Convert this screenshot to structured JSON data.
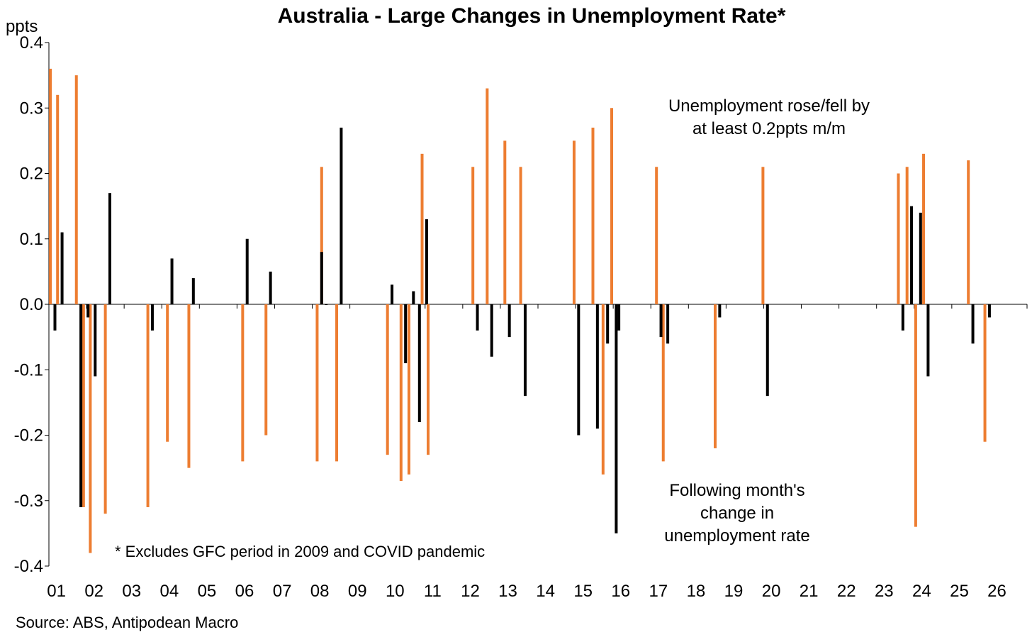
{
  "chart_data": {
    "type": "bar",
    "title": "Australia - Large Changes in Unemployment Rate*",
    "ylabel": "ppts",
    "ylim": [
      -0.4,
      0.4
    ],
    "yticks": [
      0.4,
      0.3,
      0.2,
      0.1,
      0.0,
      -0.1,
      -0.2,
      -0.3,
      -0.4
    ],
    "ytick_labels": [
      "0.4",
      "0.3",
      "0.2",
      "0.1",
      "0.0",
      "-0.1",
      "-0.2",
      "-0.3",
      "-0.4"
    ],
    "x_tick_labels": [
      "01",
      "02",
      "03",
      "04",
      "05",
      "06",
      "07",
      "08",
      "09",
      "10",
      "11",
      "12",
      "13",
      "14",
      "15",
      "16",
      "17",
      "18",
      "19",
      "20",
      "21",
      "22",
      "23",
      "24",
      "25",
      "26"
    ],
    "x_range": [
      2001.0,
      2027.0
    ],
    "series": [
      {
        "name": "Unemployment rose/fell by at least 0.2ppts m/m",
        "color": "#ED7D31",
        "points": [
          {
            "x": 2001.04,
            "y": 0.36
          },
          {
            "x": 2001.23,
            "y": 0.32
          },
          {
            "x": 2001.73,
            "y": 0.35
          },
          {
            "x": 2001.92,
            "y": -0.31
          },
          {
            "x": 2002.1,
            "y": -0.38
          },
          {
            "x": 2002.5,
            "y": -0.32
          },
          {
            "x": 2003.63,
            "y": -0.31
          },
          {
            "x": 2004.15,
            "y": -0.21
          },
          {
            "x": 2004.72,
            "y": -0.25
          },
          {
            "x": 2006.15,
            "y": -0.24
          },
          {
            "x": 2006.77,
            "y": -0.2
          },
          {
            "x": 2008.13,
            "y": -0.24
          },
          {
            "x": 2008.25,
            "y": 0.21
          },
          {
            "x": 2008.65,
            "y": -0.24
          },
          {
            "x": 2010.0,
            "y": -0.23
          },
          {
            "x": 2010.36,
            "y": -0.27
          },
          {
            "x": 2010.57,
            "y": -0.26
          },
          {
            "x": 2010.92,
            "y": 0.23
          },
          {
            "x": 2011.08,
            "y": -0.23
          },
          {
            "x": 2012.27,
            "y": 0.21
          },
          {
            "x": 2012.65,
            "y": 0.33
          },
          {
            "x": 2013.12,
            "y": 0.25
          },
          {
            "x": 2013.54,
            "y": 0.21
          },
          {
            "x": 2014.96,
            "y": 0.25
          },
          {
            "x": 2015.46,
            "y": 0.27
          },
          {
            "x": 2015.73,
            "y": -0.26
          },
          {
            "x": 2015.96,
            "y": 0.3
          },
          {
            "x": 2017.15,
            "y": 0.21
          },
          {
            "x": 2017.33,
            "y": -0.24
          },
          {
            "x": 2018.71,
            "y": -0.22
          },
          {
            "x": 2019.98,
            "y": 0.21
          },
          {
            "x": 2023.58,
            "y": 0.2
          },
          {
            "x": 2023.81,
            "y": 0.21
          },
          {
            "x": 2024.04,
            "y": -0.34
          },
          {
            "x": 2024.25,
            "y": 0.23
          },
          {
            "x": 2025.44,
            "y": 0.22
          },
          {
            "x": 2025.88,
            "y": -0.21
          }
        ]
      },
      {
        "name": "Following month's change in unemployment rate",
        "color": "#000000",
        "points": [
          {
            "x": 2001.16,
            "y": -0.04
          },
          {
            "x": 2001.35,
            "y": 0.11
          },
          {
            "x": 2001.85,
            "y": -0.31
          },
          {
            "x": 2002.04,
            "y": -0.02
          },
          {
            "x": 2002.23,
            "y": -0.11
          },
          {
            "x": 2002.62,
            "y": 0.17
          },
          {
            "x": 2003.75,
            "y": -0.04
          },
          {
            "x": 2004.27,
            "y": 0.07
          },
          {
            "x": 2004.84,
            "y": 0.04
          },
          {
            "x": 2006.27,
            "y": 0.1
          },
          {
            "x": 2006.89,
            "y": 0.05
          },
          {
            "x": 2008.25,
            "y": 0.08
          },
          {
            "x": 2008.37,
            "y": 0.0
          },
          {
            "x": 2008.77,
            "y": 0.27
          },
          {
            "x": 2010.12,
            "y": 0.03
          },
          {
            "x": 2010.48,
            "y": -0.09
          },
          {
            "x": 2010.69,
            "y": 0.02
          },
          {
            "x": 2010.85,
            "y": -0.18
          },
          {
            "x": 2011.04,
            "y": 0.13
          },
          {
            "x": 2012.39,
            "y": -0.04
          },
          {
            "x": 2012.77,
            "y": -0.08
          },
          {
            "x": 2013.24,
            "y": -0.05
          },
          {
            "x": 2013.66,
            "y": -0.14
          },
          {
            "x": 2015.08,
            "y": -0.2
          },
          {
            "x": 2015.58,
            "y": -0.19
          },
          {
            "x": 2015.85,
            "y": -0.06
          },
          {
            "x": 2016.08,
            "y": -0.35
          },
          {
            "x": 2016.15,
            "y": -0.04
          },
          {
            "x": 2017.27,
            "y": -0.05
          },
          {
            "x": 2017.45,
            "y": -0.06
          },
          {
            "x": 2018.83,
            "y": -0.02
          },
          {
            "x": 2020.1,
            "y": -0.14
          },
          {
            "x": 2023.7,
            "y": -0.04
          },
          {
            "x": 2023.93,
            "y": 0.15
          },
          {
            "x": 2024.17,
            "y": 0.14
          },
          {
            "x": 2024.37,
            "y": -0.11
          },
          {
            "x": 2025.56,
            "y": -0.06
          },
          {
            "x": 2026.0,
            "y": -0.02
          }
        ]
      }
    ],
    "annotations": {
      "orange": [
        "Unemployment rose/fell by",
        "at least 0.2ppts m/m"
      ],
      "black": [
        "Following month's",
        "change in",
        "unemployment rate"
      ],
      "note": "* Excludes GFC period in 2009 and COVID pandemic",
      "source": "Source: ABS, Antipodean Macro"
    },
    "grid": false,
    "legend": "none"
  }
}
